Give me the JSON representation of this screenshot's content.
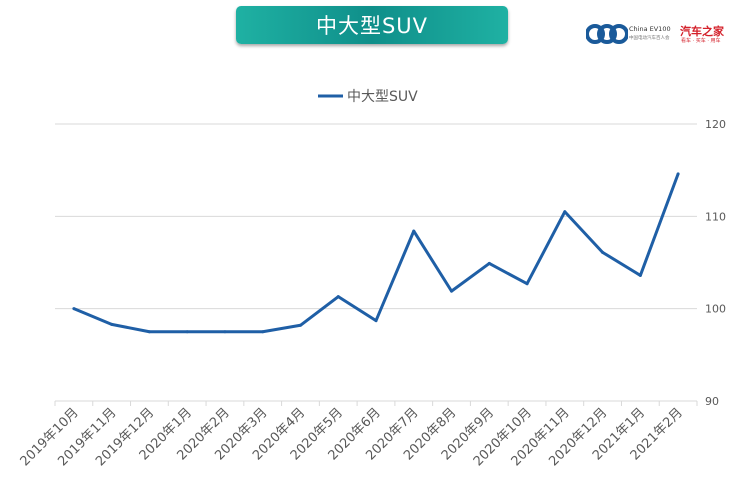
{
  "header": {
    "title": "中大型SUV",
    "logo_text": "China EV100",
    "logo_subtext": "中国电动汽车百人会",
    "logo_brand": "汽车之家",
    "logo_brand_sub": "看车 · 买车 · 用车"
  },
  "colors": {
    "line": "#1f5fa6",
    "banner": "#1a9c93",
    "grid": "#d9d9d9"
  },
  "chart_data": {
    "type": "line",
    "title": "",
    "xlabel": "",
    "ylabel": "",
    "categories": [
      "2019年10月",
      "2019年11月",
      "2019年12月",
      "2020年1月",
      "2020年2月",
      "2020年3月",
      "2020年4月",
      "2020年5月",
      "2020年6月",
      "2020年7月",
      "2020年8月",
      "2020年9月",
      "2020年10月",
      "2020年11月",
      "2020年12月",
      "2021年1月",
      "2021年2月"
    ],
    "series": [
      {
        "name": "中大型SUV",
        "values": [
          100,
          98.3,
          97.5,
          97.5,
          97.5,
          97.5,
          98.2,
          101.3,
          98.7,
          108.4,
          101.9,
          104.9,
          102.7,
          110.5,
          106.1,
          103.6,
          114.6
        ]
      }
    ],
    "ylim": [
      90,
      120
    ],
    "yticks": [
      90,
      100,
      110,
      120
    ],
    "y_axis_position": "right",
    "grid": true,
    "legend_position": "top-center"
  }
}
